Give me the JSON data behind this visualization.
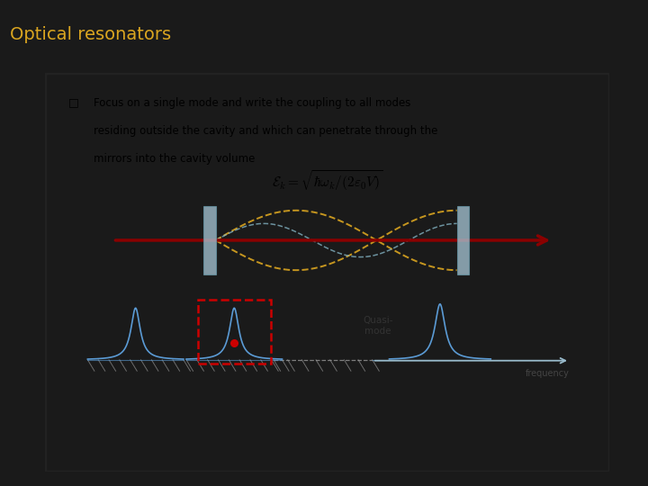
{
  "title": "Optical resonators",
  "title_color": "#DAA520",
  "title_bg": "#111111",
  "slide_bg": "#1a1a1a",
  "content_bg": "#ffffff",
  "bullet_text_line1": "Focus on a single mode and write the coupling to all modes",
  "bullet_text_line2": "residing outside the cavity and which can penetrate through the",
  "bullet_text_line3": "mirrors into the cavity volume",
  "mirror_color": "#a8c8d8",
  "wave_color1": "#DAA520",
  "wave_color2": "#88bbcc",
  "arrow_color": "#8b0000",
  "peak_color": "#5b9bd5",
  "quasi_label": "Quasi-\nmode",
  "freq_label": "frequency",
  "dashed_box_color": "#cc0000",
  "hatch_color": "#999999"
}
